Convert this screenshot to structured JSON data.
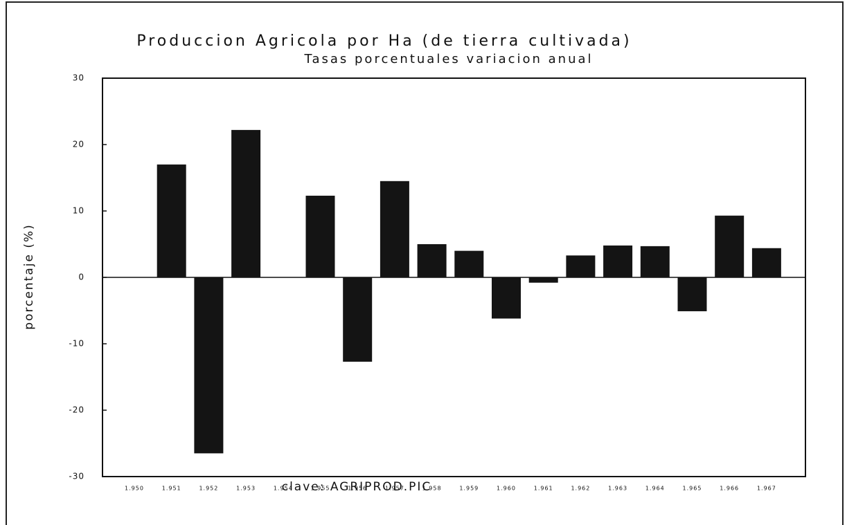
{
  "chart_data": {
    "type": "bar",
    "title": "Produccion Agricola por Ha (de tierra cultivada)",
    "subtitle": "Tasas porcentuales variacion anual",
    "ylabel": "porcentaje (%)",
    "xlabel": "clave: AGRIPROD.PIC",
    "categories": [
      "1.950",
      "1.951",
      "1.952",
      "1.953",
      "1.954",
      "1.955",
      "1.956",
      "1.957",
      "1.958",
      "1.959",
      "1.960",
      "1.961",
      "1.962",
      "1.963",
      "1.964",
      "1.965",
      "1.966",
      "1.967"
    ],
    "values": [
      0,
      17,
      -26.5,
      22.2,
      0,
      12.3,
      -12.7,
      14.5,
      5,
      4,
      -6.2,
      -0.8,
      3.3,
      4.8,
      4.7,
      -5.1,
      9.3,
      4.4
    ],
    "color": "#141414",
    "ylim": [
      -30,
      30
    ],
    "yticks": [
      -30,
      -20,
      -10,
      0,
      10,
      20,
      30
    ],
    "grid": false
  }
}
